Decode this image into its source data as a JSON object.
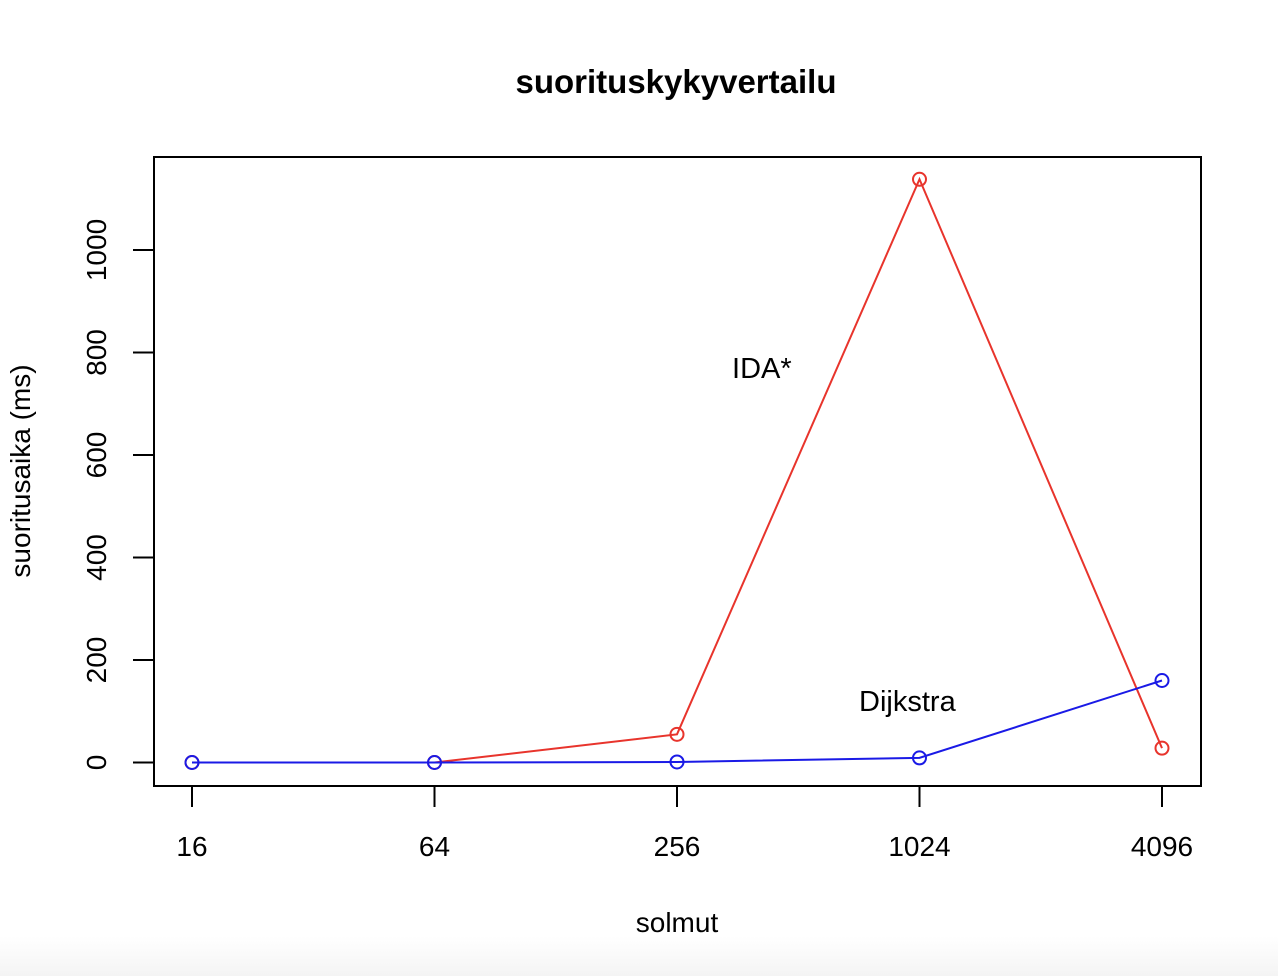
{
  "chart_data": {
    "type": "line",
    "title": "suorituskykyvertailu",
    "xlabel": "solmut",
    "ylabel": "suoritusaika (ms)",
    "categories": [
      "16",
      "64",
      "256",
      "1024",
      "4096"
    ],
    "yticks": [
      0,
      200,
      400,
      600,
      800,
      1000
    ],
    "ylim": [
      -45,
      1185
    ],
    "grid": false,
    "marker": "open-circle",
    "series": [
      {
        "name": "IDA*",
        "color": "#e8342c",
        "values": [
          0,
          0,
          55,
          1138,
          28
        ]
      },
      {
        "name": "Dijkstra",
        "color": "#1a1ae6",
        "values": [
          0,
          0,
          1,
          9,
          160
        ]
      }
    ],
    "annotations": [
      {
        "text": "IDA*",
        "x": 2.35,
        "y": 770
      },
      {
        "text": "Dijkstra",
        "x": 2.95,
        "y": 120
      }
    ]
  }
}
